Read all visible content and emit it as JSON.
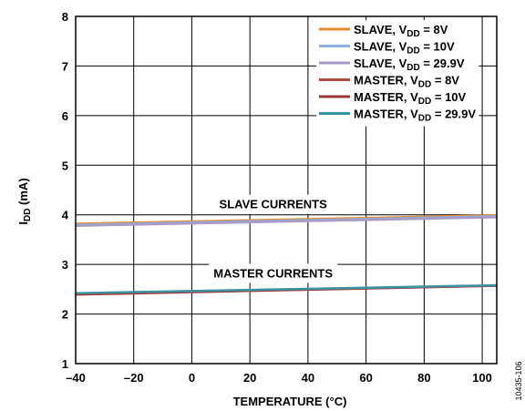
{
  "chart_data": {
    "type": "line",
    "xlabel": "TEMPERATURE (°C)",
    "ylabel": {
      "main": "I",
      "sub": "DD",
      "rest": " (mA)"
    },
    "xlim": [
      -40,
      105
    ],
    "ylim": [
      1,
      8
    ],
    "x_ticks": [
      -40,
      -20,
      0,
      20,
      40,
      60,
      80,
      100
    ],
    "x_tick_labels": [
      "–40",
      "–20",
      "0",
      "20",
      "40",
      "60",
      "80",
      "100"
    ],
    "y_ticks": [
      1,
      2,
      3,
      4,
      5,
      6,
      7,
      8
    ],
    "y_tick_labels": [
      "1",
      "2",
      "3",
      "4",
      "5",
      "6",
      "7",
      "8"
    ],
    "grid": true,
    "legend_position": "top-right",
    "series": [
      {
        "name": "SLAVE, VDD = 8V",
        "label_main": "SLAVE, V",
        "label_sub": "DD",
        "label_rest": " = 8V",
        "color": "#E8892B",
        "x": [
          -40,
          105
        ],
        "y": [
          3.82,
          3.99
        ]
      },
      {
        "name": "SLAVE, VDD = 10V",
        "label_main": "SLAVE, V",
        "label_sub": "DD",
        "label_rest": " = 10V",
        "color": "#8FAED8",
        "x": [
          -40,
          105
        ],
        "y": [
          3.8,
          3.97
        ]
      },
      {
        "name": "SLAVE, VDD = 29.9V",
        "label_main": "SLAVE, V",
        "label_sub": "DD",
        "label_rest": " = 29.9V",
        "color": "#A99BC6",
        "x": [
          -40,
          105
        ],
        "y": [
          3.78,
          3.95
        ]
      },
      {
        "name": "MASTER, VDD = 8V",
        "label_main": "MASTER, V",
        "label_sub": "DD",
        "label_rest": " = 8V",
        "color": "#B24A42",
        "x": [
          -40,
          105
        ],
        "y": [
          2.39,
          2.57
        ]
      },
      {
        "name": "MASTER, VDD = 10V",
        "label_main": "MASTER, V",
        "label_sub": "DD",
        "label_rest": " = 10V",
        "color": "#9B3838",
        "x": [
          -40,
          105
        ],
        "y": [
          2.4,
          2.57
        ]
      },
      {
        "name": "MASTER, VDD = 29.9V",
        "label_main": "MASTER, V",
        "label_sub": "DD",
        "label_rest": " = 29.9V",
        "color": "#3C93A0",
        "x": [
          -40,
          105
        ],
        "y": [
          2.42,
          2.58
        ]
      }
    ],
    "annotations": [
      {
        "text": "SLAVE CURRENTS",
        "x": 28,
        "y": 4.22
      },
      {
        "text": "MASTER CURRENTS",
        "x": 28,
        "y": 2.83
      }
    ],
    "figure_id": "10435-106"
  }
}
